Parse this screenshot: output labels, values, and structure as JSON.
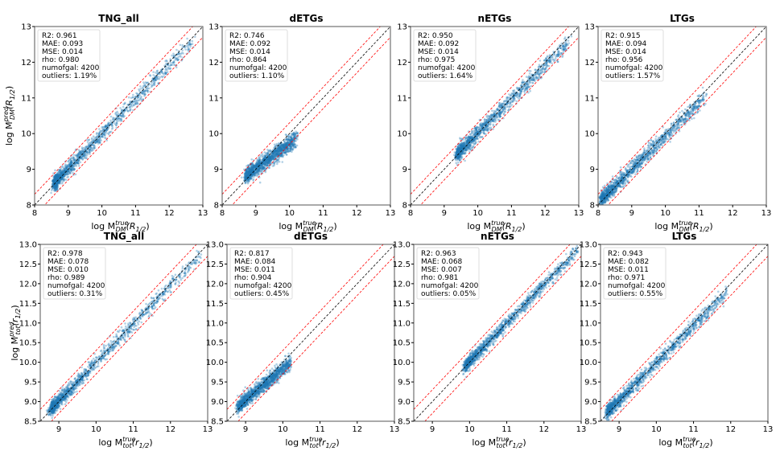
{
  "chart_data": [
    {
      "type": "scatter",
      "title": "TNG_all",
      "row": "DM",
      "xlim": [
        8,
        13
      ],
      "ylim": [
        8,
        13
      ],
      "xticks": [
        "8",
        "9",
        "10",
        "11",
        "12",
        "13"
      ],
      "yticks": [
        "8",
        "9",
        "10",
        "11",
        "12",
        "13"
      ],
      "stats": [
        "R2:  0.961",
        "MAE:  0.093",
        "MSE:  0.014",
        "rho:  0.980",
        "numofgal: 4200",
        "outliers: 1.19%"
      ],
      "cluster": {
        "x_min": 8.6,
        "x_max": 12.7,
        "skew": 2.6,
        "compress": 0.97,
        "noise": 0.11
      },
      "lines": {
        "identity": "black dashed",
        "bounds_offset": 0.3,
        "bounds": "red dashed"
      }
    },
    {
      "type": "scatter",
      "title": "dETGs",
      "row": "DM",
      "xlim": [
        8,
        13
      ],
      "ylim": [
        8,
        13
      ],
      "xticks": [
        "8",
        "9",
        "10",
        "11",
        "12",
        "13"
      ],
      "yticks": [
        "8",
        "9",
        "10",
        "11",
        "12",
        "13"
      ],
      "stats": [
        "R2:  0.746",
        "MAE:  0.092",
        "MSE:  0.014",
        "rho:  0.864",
        "numofgal: 4200",
        "outliers: 1.10%"
      ],
      "cluster": {
        "x_min": 8.7,
        "x_max": 10.2,
        "skew": 1.3,
        "compress": 0.7,
        "noise": 0.11
      },
      "lines": {
        "identity": "black dashed",
        "bounds_offset": 0.3,
        "bounds": "red dashed"
      }
    },
    {
      "type": "scatter",
      "title": "nETGs",
      "row": "DM",
      "xlim": [
        8,
        13
      ],
      "ylim": [
        8,
        13
      ],
      "xticks": [
        "8",
        "9",
        "10",
        "11",
        "12",
        "13"
      ],
      "yticks": [
        "8",
        "9",
        "10",
        "11",
        "12",
        "13"
      ],
      "stats": [
        "R2:  0.950",
        "MAE:  0.092",
        "MSE:  0.014",
        "rho:  0.975",
        "numofgal: 4200",
        "outliers: 1.64%"
      ],
      "cluster": {
        "x_min": 9.4,
        "x_max": 12.7,
        "skew": 2.2,
        "compress": 0.95,
        "noise": 0.11
      },
      "lines": {
        "identity": "black dashed",
        "bounds_offset": 0.3,
        "bounds": "red dashed"
      }
    },
    {
      "type": "scatter",
      "title": "LTGs",
      "row": "DM",
      "xlim": [
        8,
        13
      ],
      "ylim": [
        8,
        13
      ],
      "xticks": [
        "8",
        "9",
        "10",
        "11",
        "12",
        "13"
      ],
      "yticks": [
        "8",
        "9",
        "10",
        "11",
        "12",
        "13"
      ],
      "stats": [
        "R2:  0.915",
        "MAE:  0.094",
        "MSE:  0.014",
        "rho:  0.956",
        "numofgal: 4200",
        "outliers: 1.57%"
      ],
      "cluster": {
        "x_min": 8.1,
        "x_max": 11.2,
        "skew": 1.9,
        "compress": 0.93,
        "noise": 0.11
      },
      "lines": {
        "identity": "black dashed",
        "bounds_offset": 0.3,
        "bounds": "red dashed"
      }
    },
    {
      "type": "scatter",
      "title": "TNG_all",
      "row": "tot",
      "xlim": [
        8.5,
        13
      ],
      "ylim": [
        8.5,
        13
      ],
      "xticks": [
        "9",
        "10",
        "11",
        "12",
        "13"
      ],
      "yticks": [
        "8.5",
        "9.0",
        "9.5",
        "10.0",
        "10.5",
        "11.0",
        "11.5",
        "12.0",
        "12.5",
        "13.0"
      ],
      "stats": [
        "R2:  0.978",
        "MAE:  0.078",
        "MSE:  0.010",
        "rho:  0.989",
        "numofgal: 4200",
        "outliers: 0.31%"
      ],
      "cluster": {
        "x_min": 8.8,
        "x_max": 12.8,
        "skew": 2.4,
        "compress": 0.98,
        "noise": 0.09
      },
      "lines": {
        "identity": "black dashed",
        "bounds_offset": 0.3,
        "bounds": "red dashed"
      }
    },
    {
      "type": "scatter",
      "title": "dETGs",
      "row": "tot",
      "xlim": [
        8.5,
        13
      ],
      "ylim": [
        8.5,
        13
      ],
      "xticks": [
        "9",
        "10",
        "11",
        "12",
        "13"
      ],
      "yticks": [
        "8.5",
        "9.0",
        "9.5",
        "10.0",
        "10.5",
        "11.0",
        "11.5",
        "12.0",
        "12.5",
        "13.0"
      ],
      "stats": [
        "R2:  0.817",
        "MAE:  0.084",
        "MSE:  0.011",
        "rho:  0.904",
        "numofgal: 4200",
        "outliers: 0.45%"
      ],
      "cluster": {
        "x_min": 8.8,
        "x_max": 10.2,
        "skew": 1.3,
        "compress": 0.8,
        "noise": 0.09
      },
      "lines": {
        "identity": "black dashed",
        "bounds_offset": 0.3,
        "bounds": "red dashed"
      }
    },
    {
      "type": "scatter",
      "title": "nETGs",
      "row": "tot",
      "xlim": [
        8.5,
        13
      ],
      "ylim": [
        8.5,
        13
      ],
      "xticks": [
        "9",
        "10",
        "11",
        "12",
        "13"
      ],
      "yticks": [
        "8.5",
        "9.0",
        "9.5",
        "10.0",
        "10.5",
        "11.0",
        "11.5",
        "12.0",
        "12.5",
        "13.0"
      ],
      "stats": [
        "R2:  0.963",
        "MAE:  0.068",
        "MSE:  0.007",
        "rho:  0.981",
        "numofgal: 4200",
        "outliers: 0.05%"
      ],
      "cluster": {
        "x_min": 9.9,
        "x_max": 12.9,
        "skew": 2.0,
        "compress": 0.97,
        "noise": 0.08
      },
      "lines": {
        "identity": "black dashed",
        "bounds_offset": 0.3,
        "bounds": "red dashed"
      }
    },
    {
      "type": "scatter",
      "title": "LTGs",
      "row": "tot",
      "xlim": [
        8.5,
        13
      ],
      "ylim": [
        8.5,
        13
      ],
      "xticks": [
        "9",
        "10",
        "11",
        "12",
        "13"
      ],
      "yticks": [
        "8.5",
        "9.0",
        "9.5",
        "10.0",
        "10.5",
        "11.0",
        "11.5",
        "12.0",
        "12.5",
        "13.0"
      ],
      "stats": [
        "R2:  0.943",
        "MAE:  0.082",
        "MSE:  0.011",
        "rho:  0.971",
        "numofgal: 4200",
        "outliers: 0.55%"
      ],
      "cluster": {
        "x_min": 8.7,
        "x_max": 11.9,
        "skew": 2.0,
        "compress": 0.95,
        "noise": 0.09
      },
      "lines": {
        "identity": "black dashed",
        "bounds_offset": 0.3,
        "bounds": "red dashed"
      }
    }
  ],
  "labels": {
    "DM": {
      "x": {
        "pre": "log M",
        "sup": "true",
        "sub": "DM",
        "arg": "(R",
        "argsub": "1/2",
        "close": ")"
      },
      "y": {
        "pre": "log M",
        "sup": "pred",
        "sub": "DM",
        "arg": "(R",
        "argsub": "1/2",
        "close": ")"
      }
    },
    "tot": {
      "x": {
        "pre": "log M",
        "sup": "true",
        "sub": "tot",
        "arg": "(r",
        "argsub": "1/2",
        "close": ")"
      },
      "y": {
        "pre": "log M",
        "sup": "pred",
        "sub": "tot",
        "arg": "(r",
        "argsub": "1/2",
        "close": ")"
      }
    }
  },
  "colors": {
    "points": "#1f77b4",
    "identity": "#000000",
    "bounds": "#ff0000",
    "axes": "#555555"
  }
}
